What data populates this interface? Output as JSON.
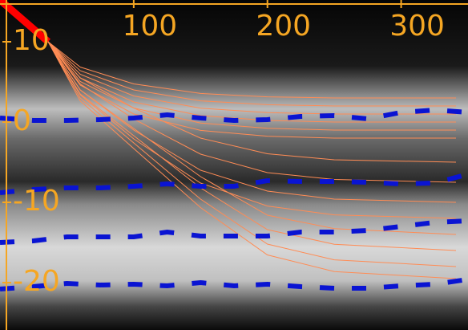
{
  "chart_data": {
    "type": "line",
    "xlim": [
      0,
      350
    ],
    "ylim": [
      -25.9,
      15.2
    ],
    "xticks": [
      100,
      200,
      300
    ],
    "yticks": [
      10,
      0,
      -10,
      -20
    ],
    "axis_color": "#f5a623",
    "series": [
      {
        "color": "#ff0000",
        "width": 9,
        "x": [
          0,
          36
        ],
        "values": [
          15.2,
          10
        ]
      },
      {
        "color": "#ff8c55",
        "width": 1,
        "x": [
          36,
          60,
          100,
          150,
          200,
          250,
          341
        ],
        "values": [
          10,
          6.85,
          4.75,
          3.56,
          3.14,
          3,
          3
        ]
      },
      {
        "color": "#ff8c55",
        "width": 1,
        "x": [
          36,
          60,
          100,
          150,
          200,
          250,
          341
        ],
        "values": [
          10,
          6.4,
          4,
          2.64,
          2.16,
          2,
          2
        ]
      },
      {
        "color": "#ff8c55",
        "width": 1,
        "x": [
          36,
          60,
          100,
          150,
          200,
          250,
          341
        ],
        "values": [
          10,
          5.95,
          3.25,
          1.72,
          1.18,
          1,
          1
        ]
      },
      {
        "color": "#ff8c55",
        "width": 1,
        "x": [
          36,
          60,
          100,
          150,
          200,
          250,
          341
        ],
        "values": [
          10,
          5.5,
          2.5,
          0.8,
          0.2,
          0,
          0
        ]
      },
      {
        "color": "#ff8c55",
        "width": 1,
        "x": [
          36,
          60,
          100,
          150,
          200,
          250,
          341
        ],
        "values": [
          10,
          5.05,
          1.75,
          -0.12,
          -0.78,
          -1,
          -1
        ]
      },
      {
        "color": "#ff8c55",
        "width": 1,
        "x": [
          36,
          60,
          100,
          150,
          200,
          250,
          341
        ],
        "values": [
          10,
          4.6,
          1,
          -1.04,
          -1.76,
          -2,
          -2
        ]
      },
      {
        "color": "#ff8c55",
        "width": 1,
        "x": [
          36,
          60,
          100,
          150,
          200,
          250,
          341
        ],
        "values": [
          10,
          5.5,
          1.75,
          -2,
          -3.95,
          -4.7,
          -5
        ]
      },
      {
        "color": "#ff8c55",
        "width": 1,
        "x": [
          36,
          60,
          100,
          150,
          200,
          250,
          341
        ],
        "values": [
          10,
          4.75,
          0.38,
          -4,
          -6.3,
          -7.15,
          -7.5
        ]
      },
      {
        "color": "#ff8c55",
        "width": 1,
        "x": [
          36,
          60,
          100,
          150,
          200,
          250,
          341
        ],
        "values": [
          10,
          4,
          -1,
          -6,
          -8.6,
          -9.6,
          -10
        ]
      },
      {
        "color": "#ff8c55",
        "width": 1,
        "x": [
          36,
          60,
          100,
          150,
          200,
          250,
          341
        ],
        "values": [
          10,
          3.4,
          -2.1,
          -7.6,
          -10.46,
          -11.56,
          -12
        ]
      },
      {
        "color": "#ff8c55",
        "width": 1,
        "x": [
          36,
          60,
          100,
          150,
          200,
          250,
          341
        ],
        "values": [
          10,
          4,
          -0.8,
          -6.8,
          -11.6,
          -13.28,
          -14
        ]
      },
      {
        "color": "#ff8c55",
        "width": 1,
        "x": [
          36,
          60,
          100,
          150,
          200,
          250,
          341
        ],
        "values": [
          10,
          3.5,
          -1.7,
          -8.2,
          -13.4,
          -15.22,
          -16
        ]
      },
      {
        "color": "#ff8c55",
        "width": 1,
        "x": [
          36,
          60,
          100,
          150,
          200,
          250,
          341
        ],
        "values": [
          10,
          3,
          -2.6,
          -9.6,
          -15.2,
          -17.16,
          -18
        ]
      },
      {
        "color": "#ff8c55",
        "width": 1,
        "x": [
          36,
          60,
          100,
          150,
          200,
          250,
          341
        ],
        "values": [
          10,
          2.63,
          -3.3,
          -10.65,
          -16.55,
          -18.62,
          -19.5
        ]
      },
      {
        "color": "#0a14d2",
        "width": 6,
        "dashed": true,
        "x": [
          0,
          25,
          50,
          75,
          100,
          125,
          150,
          175,
          200,
          225,
          250,
          275,
          300,
          325,
          350
        ],
        "values": [
          0.5,
          0.2,
          0.2,
          0.3,
          0.5,
          0.9,
          0.5,
          0.2,
          0.3,
          0.7,
          0.8,
          0.4,
          1.2,
          1.5,
          1.2
        ]
      },
      {
        "color": "#0a14d2",
        "width": 6,
        "dashed": true,
        "x": [
          0,
          25,
          50,
          75,
          100,
          125,
          150,
          175,
          200,
          225,
          250,
          275,
          300,
          325,
          350
        ],
        "values": [
          -8.8,
          -8.4,
          -8.2,
          -8.2,
          -8,
          -7.7,
          -8,
          -8,
          -7.3,
          -7.4,
          -7.4,
          -7.5,
          -7.7,
          -7.6,
          -6.5
        ]
      },
      {
        "color": "#0a14d2",
        "width": 6,
        "dashed": true,
        "x": [
          0,
          25,
          50,
          75,
          100,
          125,
          150,
          175,
          200,
          225,
          250,
          275,
          300,
          325,
          350
        ],
        "values": [
          -15,
          -14.8,
          -14.3,
          -14.3,
          -14.3,
          -13.7,
          -14.2,
          -14.2,
          -14.2,
          -13.7,
          -13.7,
          -13.5,
          -13,
          -12.5,
          -12.3
        ]
      },
      {
        "color": "#0a14d2",
        "width": 6,
        "dashed": true,
        "x": [
          0,
          25,
          50,
          75,
          100,
          125,
          150,
          175,
          200,
          225,
          250,
          275,
          300,
          325,
          350
        ],
        "values": [
          -20.8,
          -20.5,
          -20.1,
          -20.3,
          -20.2,
          -20.4,
          -20,
          -20.4,
          -20.2,
          -20.5,
          -20.7,
          -20.7,
          -20.4,
          -20.2,
          -19.6
        ]
      }
    ]
  }
}
